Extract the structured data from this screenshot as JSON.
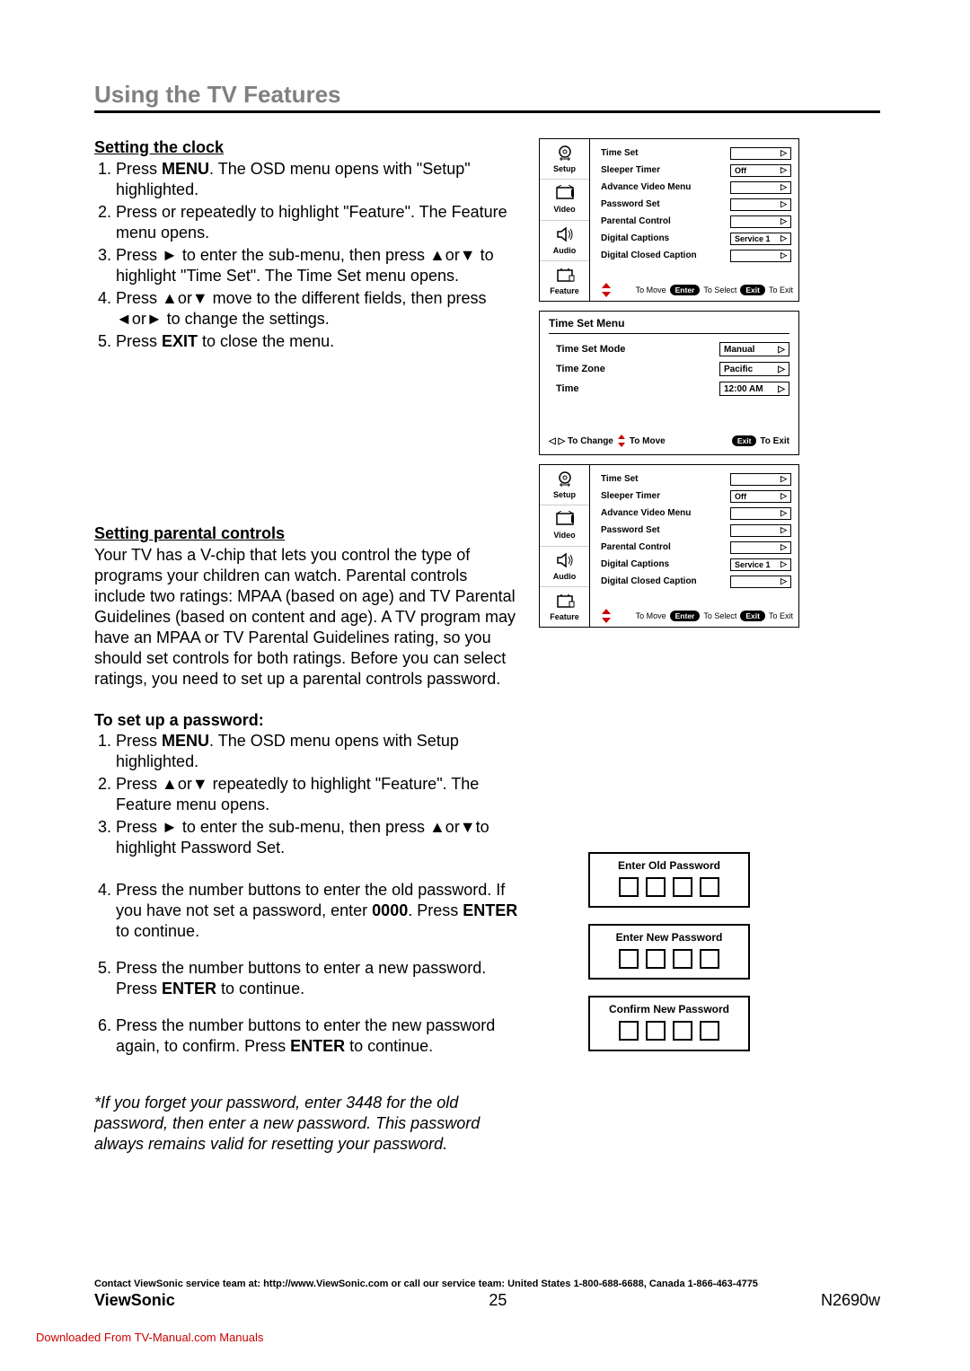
{
  "page_title": "Using the TV Features",
  "clock": {
    "heading": "Setting the clock",
    "steps": [
      {
        "pre": "Press ",
        "bold": "MENU",
        "post": ". The OSD menu opens with \"Setup\" highlighted."
      },
      {
        "pre": "Press or repeatedly to highlight \"Feature\". The Feature menu opens.",
        "bold": "",
        "post": ""
      },
      {
        "pre": "Press ► to enter the sub-menu, then press ▲or▼ to highlight \"Time Set\". The Time Set menu opens.",
        "bold": "",
        "post": ""
      },
      {
        "pre": "Press ▲or▼ move to the different fields, then press ◄or► to change the settings.",
        "bold": "",
        "post": ""
      },
      {
        "pre": "Press ",
        "bold": "EXIT",
        "post": " to close the menu."
      }
    ]
  },
  "parental": {
    "heading": "Setting parental controls",
    "intro": "Your TV has a V-chip that lets you control the type of programs your children can watch. Parental controls include two ratings: MPAA (based on age) and TV Parental Guidelines (based on content and age). A TV program may have an MPAA or TV Parental Guidelines rating, so you should set controls for both ratings. Before you can select ratings, you need to set up a parental controls password.",
    "pw_heading": "To set up a password:",
    "steps": [
      {
        "pre": "Press ",
        "bold": "MENU",
        "post": ". The OSD menu opens with Setup highlighted."
      },
      {
        "pre": "Press ▲or▼ repeatedly to highlight \"Feature\". The Feature menu opens.",
        "bold": "",
        "post": ""
      },
      {
        "pre": "Press ► to enter the sub-menu, then press ▲or▼to highlight Password Set.",
        "bold": "",
        "post": ""
      }
    ],
    "steps2": [
      {
        "pre": "Press the number buttons to enter the old password. If you have not set a password, enter ",
        "bold": "0000",
        "post": ". Press ",
        "bold2": "ENTER",
        "post2": " to continue."
      },
      {
        "pre": "Press the number buttons to enter a new password. Press ",
        "bold": "ENTER",
        "post": " to continue."
      },
      {
        "pre": "Press the number buttons to enter the new password again, to confirm. Press ",
        "bold": "ENTER",
        "post": " to continue."
      }
    ],
    "note": "*If you forget your password, enter 3448 for the old password, then enter a new password. This password always remains valid for resetting your password."
  },
  "osd": {
    "sidebar": [
      "Setup",
      "Video",
      "Audio",
      "Feature"
    ],
    "items": [
      {
        "label": "Time Set",
        "value": "",
        "arrow": true
      },
      {
        "label": "Sleeper Timer",
        "value": "Off",
        "arrow": true
      },
      {
        "label": "Advance Video Menu",
        "value": "",
        "arrow": true
      },
      {
        "label": "Password Set",
        "value": "",
        "arrow": true
      },
      {
        "label": "Parental Control",
        "value": "",
        "arrow": true
      },
      {
        "label": "Digital Captions",
        "value": "Service 1",
        "arrow": true,
        "sel": true
      },
      {
        "label": "Digital Closed Caption",
        "value": "",
        "arrow": true
      }
    ],
    "hints": {
      "move": "To Move",
      "enter": "Enter",
      "select": "To Select",
      "exit": "Exit",
      "toexit": "To Exit"
    }
  },
  "timeset": {
    "title": "Time Set Menu",
    "rows": [
      {
        "label": "Time Set Mode",
        "value": "Manual"
      },
      {
        "label": "Time Zone",
        "value": "Pacific"
      },
      {
        "label": "Time",
        "value": "12:00 AM"
      }
    ],
    "hints": {
      "change": "◁ ▷ To Change",
      "move": "To Move",
      "exit": "Exit",
      "toexit": "To Exit"
    }
  },
  "pw_boxes": [
    "Enter Old Password",
    "Enter New Password",
    "Confirm New Password"
  ],
  "footer": {
    "contact": "Contact ViewSonic service team at: http://www.ViewSonic.com or call our service team: United States 1-800-688-6688, Canada 1-866-463-4775",
    "brand": "ViewSonic",
    "page": "25",
    "model": "N2690w"
  },
  "download_note": "Downloaded From TV-Manual.com Manuals",
  "colors": {
    "title_gray": "#808080",
    "link_red": "#cc0000"
  }
}
